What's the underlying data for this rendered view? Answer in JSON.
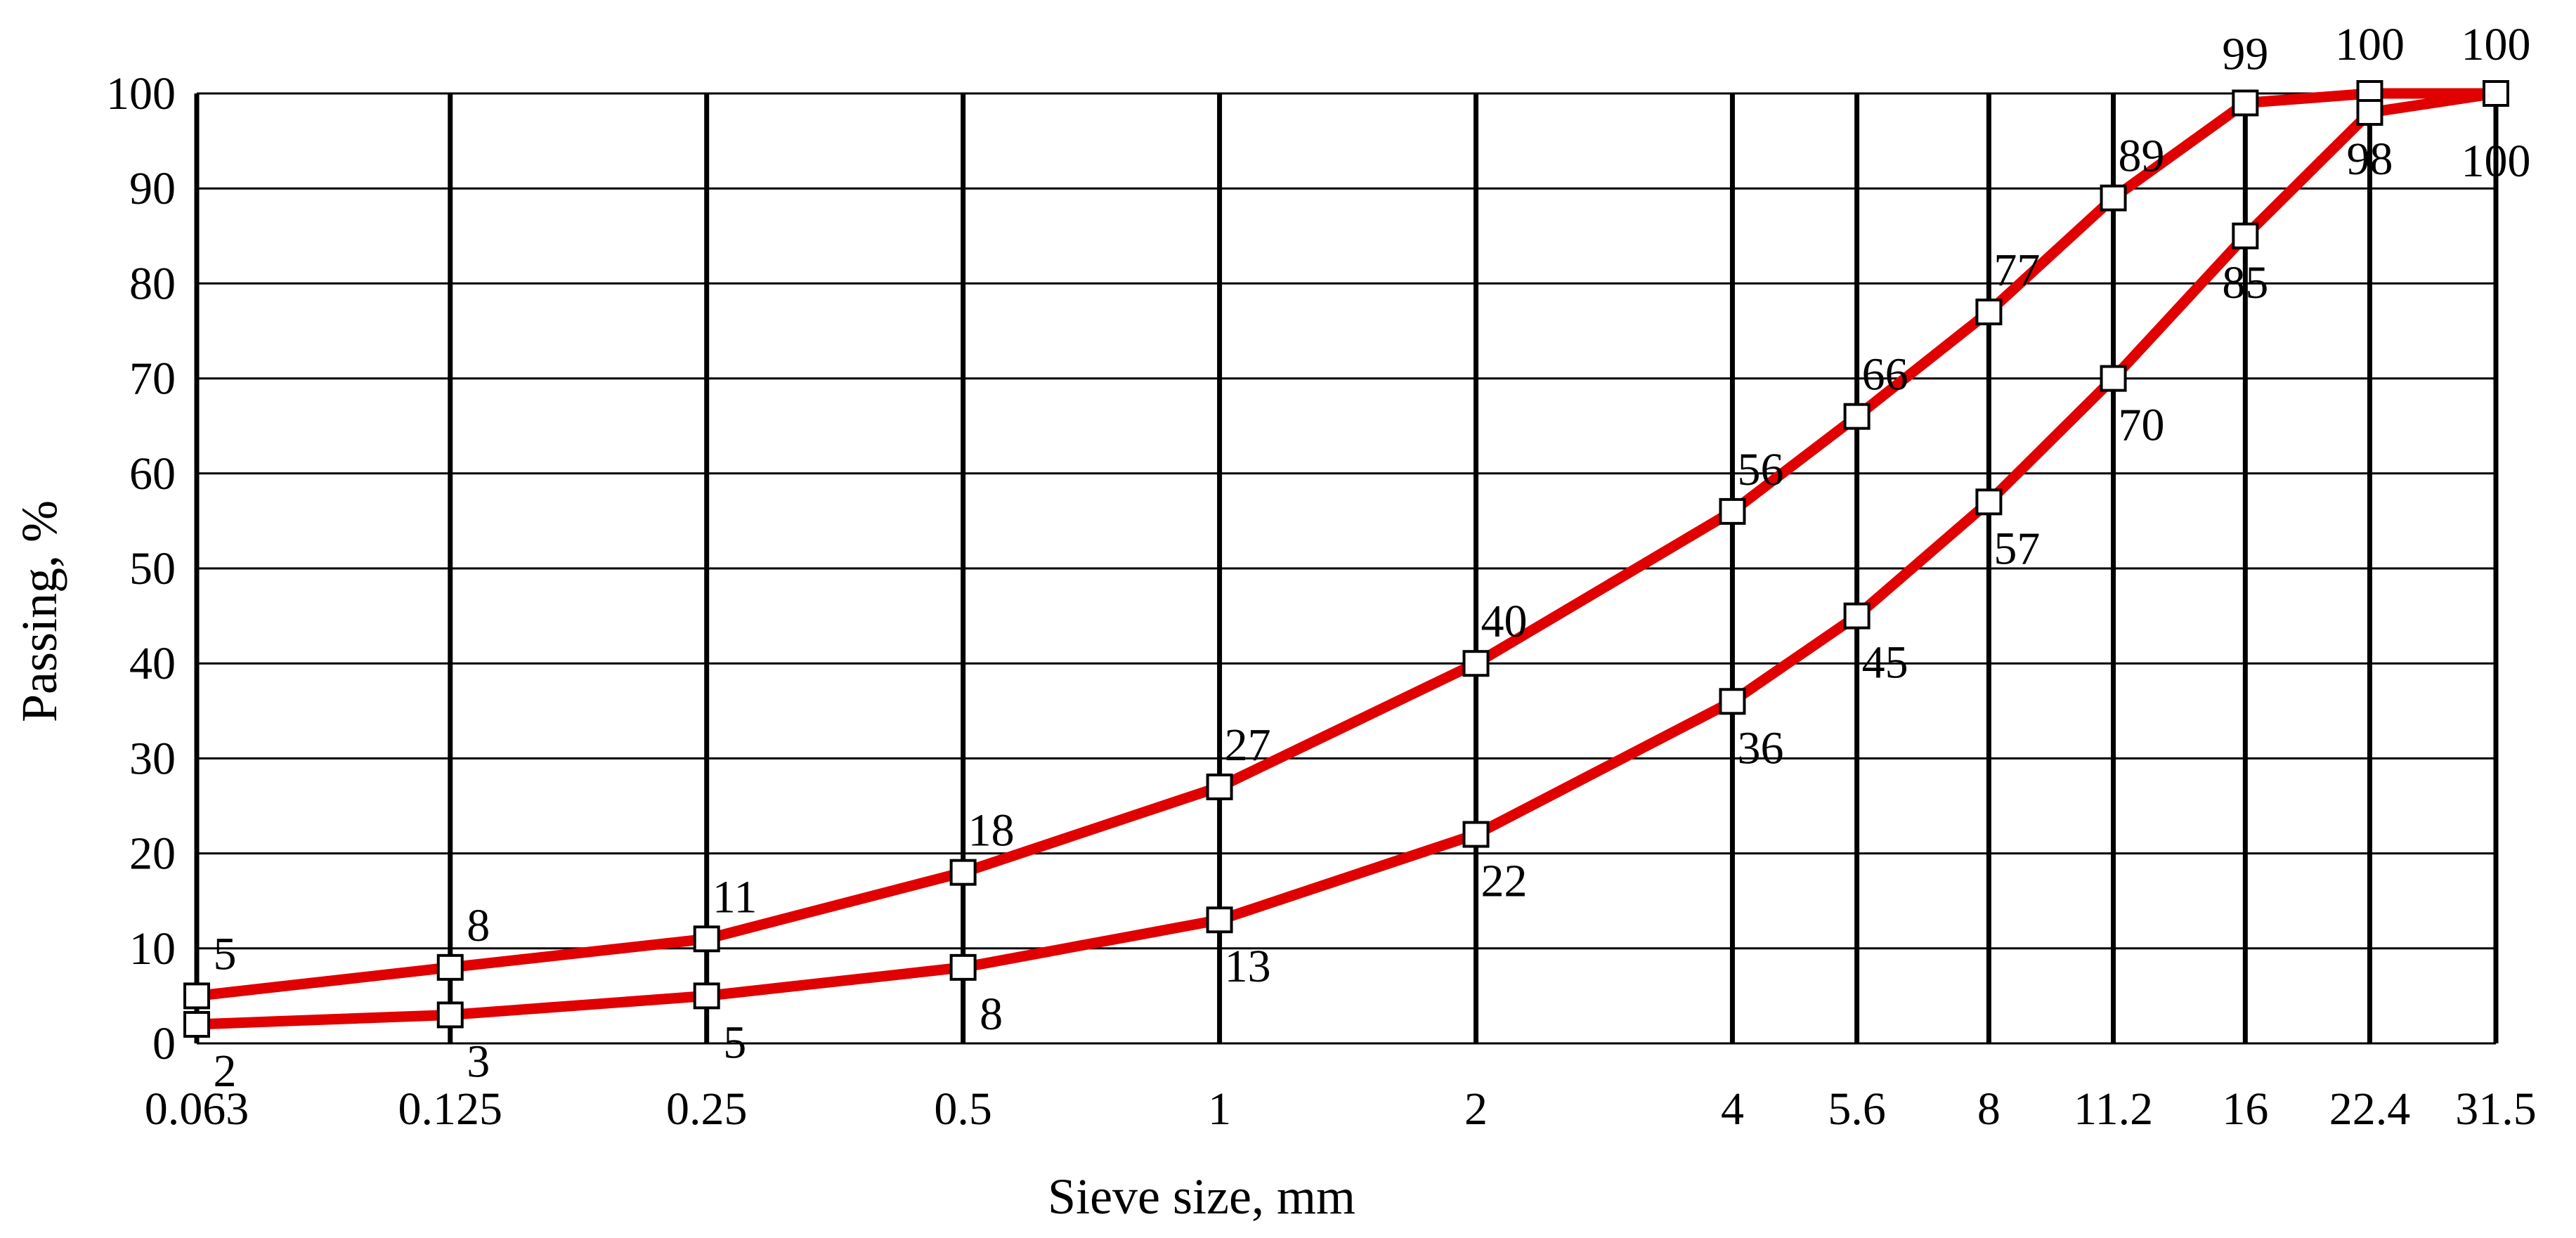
{
  "chart_data": {
    "type": "line",
    "title": "",
    "xlabel": "Sieve size, mm",
    "ylabel": "Passing, %",
    "x_scale": "log",
    "x": [
      0.063,
      0.125,
      0.25,
      0.5,
      1,
      2,
      4,
      5.6,
      8,
      11.2,
      16,
      22.4,
      31.5
    ],
    "x_tick_labels": [
      "0.063",
      "0.125",
      "0.25",
      "0.5",
      "1",
      "2",
      "4",
      "5.6",
      "8",
      "11.2",
      "16",
      "22.4",
      "31.5"
    ],
    "ylim": [
      0,
      100
    ],
    "y_ticks": [
      0,
      10,
      20,
      30,
      40,
      50,
      60,
      70,
      80,
      90,
      100
    ],
    "grid": true,
    "legend": "none",
    "line_color": "#e00000",
    "marker": "open-square",
    "series": [
      {
        "values": [
          5,
          8,
          11,
          18,
          27,
          40,
          56,
          66,
          77,
          89,
          99,
          100,
          100
        ],
        "labels": [
          "5",
          "8",
          "11",
          "18",
          "27",
          "40",
          "56",
          "66",
          "77",
          "89",
          "99",
          "100",
          "100"
        ],
        "label_position": "above"
      },
      {
        "values": [
          2,
          3,
          5,
          8,
          13,
          22,
          36,
          45,
          57,
          70,
          85,
          98,
          100
        ],
        "labels": [
          "2",
          "3",
          "5",
          "8",
          "13",
          "22",
          "36",
          "45",
          "57",
          "70",
          "85",
          "98",
          "100"
        ],
        "label_position": "below"
      }
    ]
  }
}
